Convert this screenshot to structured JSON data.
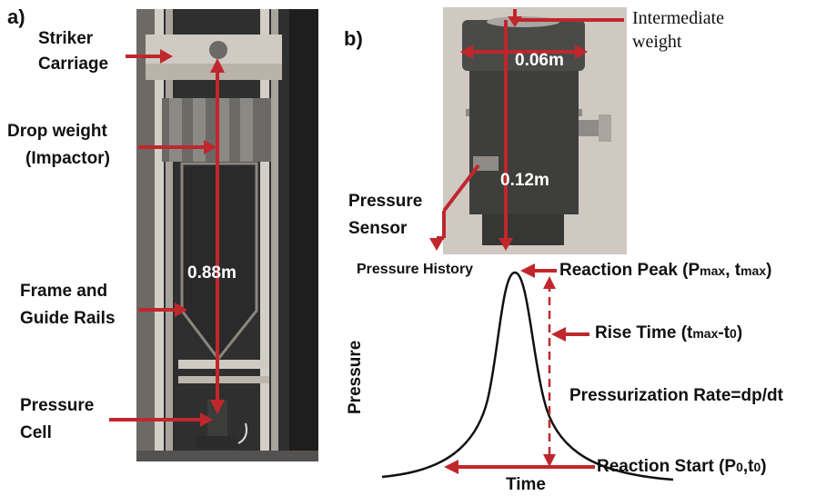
{
  "panel_a": {
    "tag": "a)",
    "labels": {
      "striker_1": "Striker",
      "striker_2": "Carriage",
      "drop_1": "Drop weight",
      "drop_2": "(Impactor)",
      "frame_1": "Frame and",
      "frame_2": "Guide Rails",
      "cell_1": "Pressure",
      "cell_2": "Cell"
    },
    "height_label": "0.88m"
  },
  "panel_b": {
    "tag": "b)",
    "intermediate_1": "Intermediate",
    "intermediate_2": "weight",
    "width_label": "0.06m",
    "height_label": "0.12m",
    "sensor_1": "Pressure",
    "sensor_2": "Sensor"
  },
  "graph": {
    "title": "Pressure History",
    "ylabel": "Pressure",
    "xlabel": "Time",
    "peak_label": "Reaction Peak (P",
    "peak_sub1": "max",
    "peak_mid": ", t",
    "peak_sub2": "max",
    "peak_end": ")",
    "rise_label": "Rise Time (t",
    "rise_sub1": "max",
    "rise_mid": "-t",
    "rise_sub2": "0",
    "rise_end": ")",
    "rate_label": "Pressurization Rate=dp/dt",
    "start_label": "Reaction Start (P",
    "start_sub1": "0",
    "start_mid": ",t",
    "start_sub2": "0",
    "start_end": ")"
  },
  "colors": {
    "arrow": "#c0272d",
    "frame_bg": "#3a3a3a",
    "rail": "#c9c2b4",
    "steel": "#4a4a48"
  }
}
